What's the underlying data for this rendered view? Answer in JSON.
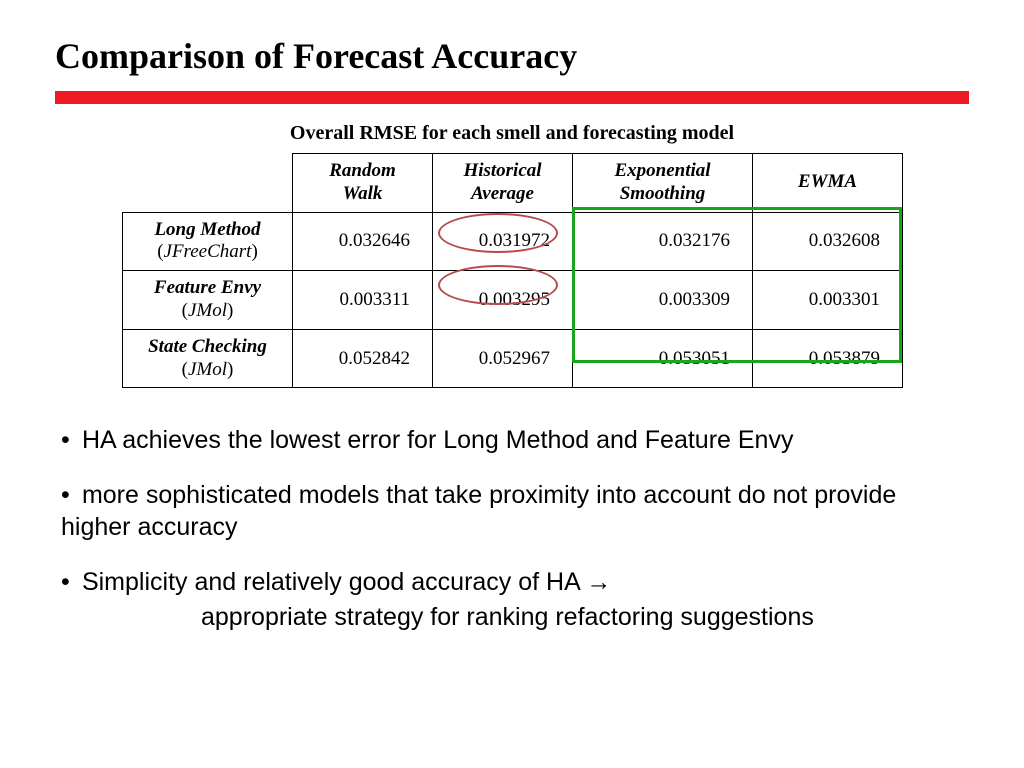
{
  "title": "Comparison of Forecast Accuracy",
  "subtitle": "Overall RMSE for each smell and forecasting model",
  "colors": {
    "red_bar": "#ed1c24",
    "ellipse": "#b84a4a",
    "green_box": "#1aa61a",
    "text": "#000000",
    "background": "#ffffff"
  },
  "table": {
    "columns": [
      "Random\nWalk",
      "Historical\nAverage",
      "Exponential\nSmoothing",
      "EWMA"
    ],
    "rows": [
      {
        "name": "Long Method",
        "project": "JFreeChart",
        "values": [
          "0.032646",
          "0.031972",
          "0.032176",
          "0.032608"
        ]
      },
      {
        "name": "Feature Envy",
        "project": "JMol",
        "values": [
          "0.003311",
          "0.003295",
          "0.003309",
          "0.003301"
        ]
      },
      {
        "name": "State Checking",
        "project": "JMol",
        "values": [
          "0.052842",
          "0.052967",
          "0.053051",
          "0.053879"
        ]
      }
    ]
  },
  "highlights": {
    "ellipses": [
      {
        "row": 0,
        "col": 1
      },
      {
        "row": 1,
        "col": 1
      }
    ],
    "green_box": {
      "cols": [
        2,
        3
      ],
      "rows": [
        0,
        1,
        2
      ]
    }
  },
  "bullets": [
    {
      "text": "HA achieves the lowest error for Long Method and Feature Envy"
    },
    {
      "text": "more sophisticated models that take proximity into account do not provide higher accuracy"
    },
    {
      "text_a": "Simplicity and relatively good accuracy of HA ",
      "arrow": "→",
      "text_b": "appropriate strategy for ranking refactoring suggestions"
    }
  ],
  "typography": {
    "title_fontsize": 36,
    "subtitle_fontsize": 20,
    "table_fontsize": 19,
    "bullet_fontsize": 25,
    "title_font": "Times New Roman",
    "bullet_font": "Arial"
  }
}
